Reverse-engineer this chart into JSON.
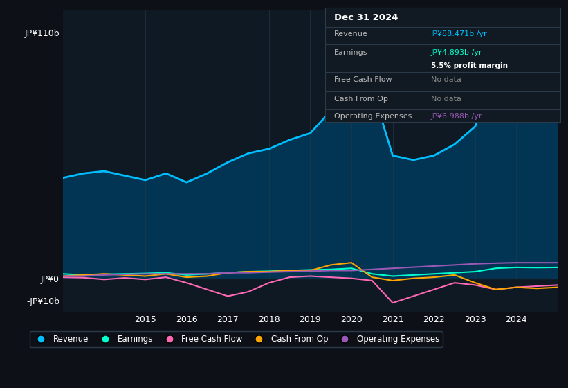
{
  "background_color": "#0d1117",
  "plot_bg_color": "#0f1923",
  "title": "Dec 31 2024",
  "years": [
    2013.0,
    2013.5,
    2014.0,
    2014.5,
    2015.0,
    2015.5,
    2016.0,
    2016.5,
    2017.0,
    2017.5,
    2018.0,
    2018.5,
    2019.0,
    2019.5,
    2020.0,
    2020.5,
    2021.0,
    2021.5,
    2022.0,
    2022.5,
    2023.0,
    2023.5,
    2024.0,
    2024.5,
    2025.0
  ],
  "revenue": [
    45,
    47,
    48,
    46,
    44,
    47,
    43,
    47,
    52,
    56,
    58,
    62,
    65,
    75,
    105,
    85,
    55,
    53,
    55,
    60,
    68,
    90,
    88,
    86,
    88
  ],
  "earnings": [
    2,
    1.5,
    1.8,
    2.0,
    2.2,
    2.5,
    1.5,
    2.0,
    2.5,
    3.0,
    3.2,
    3.5,
    3.8,
    4.0,
    4.5,
    2.0,
    1.0,
    1.5,
    2.0,
    2.5,
    3.0,
    4.5,
    4.9,
    4.8,
    4.9
  ],
  "free_cash_flow": [
    0.5,
    0.3,
    -0.5,
    0.2,
    -0.5,
    0.5,
    -2.0,
    -5.0,
    -8.0,
    -6.0,
    -2.0,
    0.5,
    1.0,
    0.5,
    0.0,
    -1.0,
    -11.0,
    -8.0,
    -5.0,
    -2.0,
    -3.0,
    -5.0,
    -4.0,
    -3.5,
    -3.0
  ],
  "cash_from_op": [
    1.0,
    1.5,
    2.0,
    1.5,
    1.0,
    2.0,
    0.5,
    1.0,
    2.5,
    3.0,
    3.0,
    3.5,
    3.5,
    6.0,
    7.0,
    0.5,
    -1.0,
    0.0,
    0.5,
    1.5,
    -2.0,
    -5.0,
    -4.0,
    -4.5,
    -4.0
  ],
  "operating_expenses": [
    1.0,
    1.0,
    1.5,
    1.8,
    2.0,
    2.0,
    2.0,
    2.0,
    2.5,
    2.5,
    2.8,
    3.0,
    3.2,
    3.5,
    3.5,
    4.0,
    4.5,
    5.0,
    5.5,
    6.0,
    6.5,
    6.8,
    7.0,
    7.0,
    7.0
  ],
  "revenue_color": "#00bfff",
  "earnings_color": "#00ffcc",
  "free_cash_flow_color": "#ff69b4",
  "cash_from_op_color": "#ffa500",
  "operating_expenses_color": "#9b59b6",
  "ylim_min": -15,
  "ylim_max": 120,
  "ytick_labels": [
    "JP¥110b",
    "JP¥0",
    "-JP¥10b"
  ],
  "ytick_values": [
    110,
    0,
    -10
  ],
  "xtick_labels": [
    "2015",
    "2016",
    "2017",
    "2018",
    "2019",
    "2020",
    "2021",
    "2022",
    "2023",
    "2024"
  ],
  "xtick_values": [
    2015,
    2016,
    2017,
    2018,
    2019,
    2020,
    2021,
    2022,
    2023,
    2024
  ],
  "info_box": {
    "date": "Dec 31 2024",
    "revenue_val": "JP¥88.471b",
    "earnings_val": "JP¥4.893b",
    "profit_margin": "5.5%",
    "free_cash_flow_val": "No data",
    "cash_from_op_val": "No data",
    "operating_expenses_val": "JP¥6.988b"
  },
  "legend_entries": [
    "Revenue",
    "Earnings",
    "Free Cash Flow",
    "Cash From Op",
    "Operating Expenses"
  ],
  "legend_colors": [
    "#00bfff",
    "#00ffcc",
    "#ff69b4",
    "#ffa500",
    "#9b59b6"
  ]
}
